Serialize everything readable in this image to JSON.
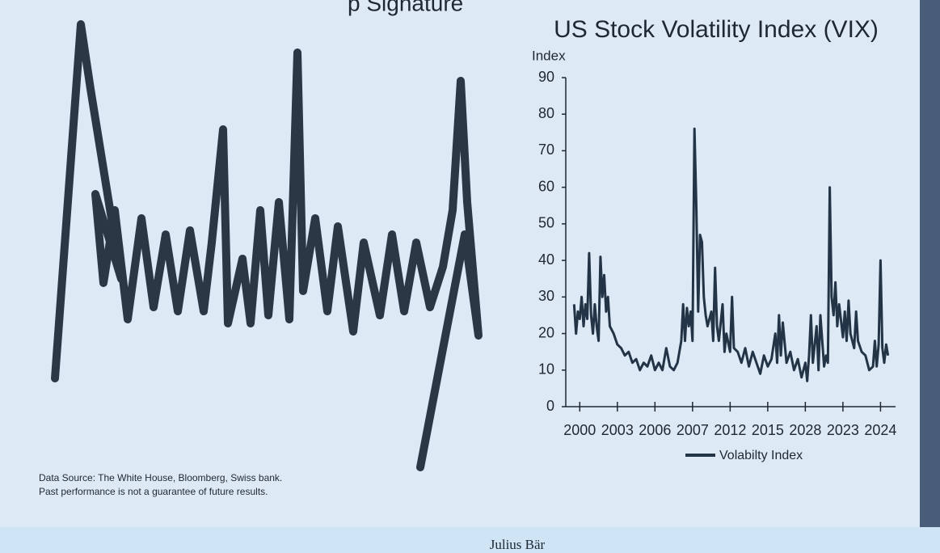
{
  "slide": {
    "left_title": "p Signature",
    "footnotes": [
      "Data Source: The White House, Bloomberg, Swiss bank.",
      "Past performance is not a guarantee of future results."
    ],
    "brand": "Julius Bär"
  },
  "chart_data": {
    "type": "line",
    "title": "US Stock Volatility Index (VIX)",
    "y_label": "Index",
    "x": [
      -0.15,
      -0.1,
      -0.05,
      0,
      0.05,
      0.1,
      0.15,
      0.2,
      0.25,
      0.3,
      0.35,
      0.4,
      0.45,
      0.5,
      0.55,
      0.6,
      0.65,
      0.7,
      0.75,
      0.8,
      0.9,
      1.0,
      1.1,
      1.2,
      1.3,
      1.4,
      1.5,
      1.6,
      1.7,
      1.8,
      1.9,
      2.0,
      2.1,
      2.2,
      2.3,
      2.4,
      2.5,
      2.6,
      2.7,
      2.75,
      2.8,
      2.85,
      2.9,
      2.95,
      3.0,
      3.05,
      3.1,
      3.15,
      3.2,
      3.25,
      3.3,
      3.35,
      3.4,
      3.5,
      3.55,
      3.6,
      3.65,
      3.7,
      3.8,
      3.85,
      3.9,
      4.0,
      4.05,
      4.1,
      4.2,
      4.3,
      4.4,
      4.5,
      4.6,
      4.7,
      4.8,
      4.9,
      5.0,
      5.1,
      5.2,
      5.25,
      5.3,
      5.35,
      5.4,
      5.5,
      5.6,
      5.7,
      5.8,
      5.9,
      6.0,
      6.05,
      6.1,
      6.15,
      6.2,
      6.3,
      6.35,
      6.4,
      6.5,
      6.55,
      6.6,
      6.65,
      6.7,
      6.75,
      6.8,
      6.85,
      6.9,
      7.0,
      7.05,
      7.1,
      7.15,
      7.2,
      7.3,
      7.35,
      7.4,
      7.5,
      7.6,
      7.7,
      7.8,
      7.85,
      7.9,
      7.95,
      8.0,
      8.05,
      8.1,
      8.15,
      8.2
    ],
    "series": [
      {
        "name": "Volabilty Index",
        "color": "#233447",
        "values": [
          28,
          20,
          26,
          24,
          30,
          22,
          28,
          24,
          42,
          25,
          20,
          28,
          22,
          18,
          41,
          30,
          36,
          26,
          30,
          22,
          20,
          17,
          16,
          14,
          15,
          12,
          13,
          10,
          12,
          11,
          14,
          10,
          12,
          10,
          16,
          11,
          10,
          12,
          18,
          28,
          18,
          27,
          22,
          26,
          18,
          76,
          55,
          26,
          47,
          45,
          30,
          25,
          22,
          26,
          18,
          38,
          22,
          18,
          28,
          15,
          20,
          15,
          30,
          16,
          15,
          12,
          16,
          11,
          15,
          12,
          9,
          14,
          11,
          13,
          20,
          12,
          25,
          14,
          23,
          12,
          15,
          10,
          13,
          8,
          12,
          7,
          14,
          25,
          12,
          22,
          10,
          25,
          11,
          14,
          12,
          60,
          30,
          25,
          34,
          22,
          28,
          19,
          26,
          18,
          29,
          20,
          16,
          26,
          18,
          15,
          14,
          10,
          11,
          18,
          11,
          17,
          40,
          16,
          12,
          17,
          14
        ]
      }
    ],
    "xlim": [
      -0.2,
      8.4
    ],
    "xticks": [
      {
        "value": 0,
        "label": "2000"
      },
      {
        "value": 1,
        "label": "2003"
      },
      {
        "value": 2,
        "label": "2006"
      },
      {
        "value": 3,
        "label": "2007"
      },
      {
        "value": 4,
        "label": "2012"
      },
      {
        "value": 5,
        "label": "2015"
      },
      {
        "value": 6,
        "label": "2028"
      },
      {
        "value": 7,
        "label": "2023"
      },
      {
        "value": 8,
        "label": "2024"
      }
    ],
    "ylim": [
      0,
      90
    ],
    "yticks": [
      0,
      10,
      20,
      30,
      40,
      50,
      60,
      70,
      80,
      90
    ],
    "grid": false
  }
}
